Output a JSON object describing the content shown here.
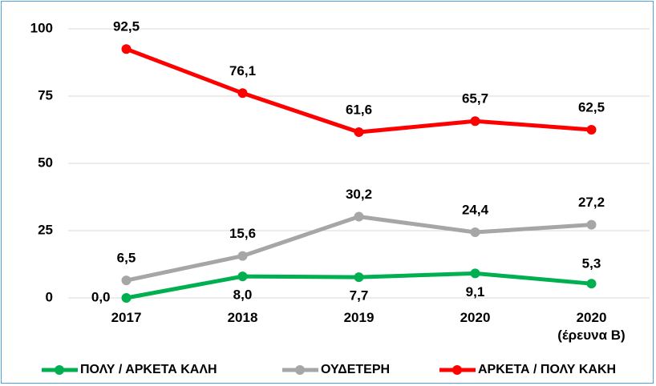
{
  "chart_data": {
    "type": "line",
    "categories": [
      "2017",
      "2018",
      "2019",
      "2020",
      "2020 (έρευνα Β)"
    ],
    "series": [
      {
        "name": "ΠΟΛΥ / ΑΡΚΕΤΑ ΚΑΛΗ",
        "color": "#00b050",
        "values": [
          0.0,
          8.0,
          7.7,
          9.1,
          5.3
        ],
        "value_labels": [
          "0,0",
          "8,0",
          "7,7",
          "9,1",
          "5,3"
        ]
      },
      {
        "name": "ΟΥΔΕΤΕΡΗ",
        "color": "#a6a6a6",
        "values": [
          6.5,
          15.6,
          30.2,
          24.4,
          27.2
        ],
        "value_labels": [
          "6,5",
          "15,6",
          "30,2",
          "24,4",
          "27,2"
        ]
      },
      {
        "name": "ΑΡΚΕΤΑ / ΠΟΛΥ ΚΑΚΗ",
        "color": "#ff0000",
        "values": [
          92.5,
          76.1,
          61.6,
          65.7,
          62.5
        ],
        "value_labels": [
          "92,5",
          "76,1",
          "61,6",
          "65,7",
          "62,5"
        ]
      }
    ],
    "ylim": [
      0,
      100
    ],
    "yticks": [
      0,
      25,
      50,
      75,
      100
    ],
    "grid": true,
    "legend": "bottom"
  }
}
